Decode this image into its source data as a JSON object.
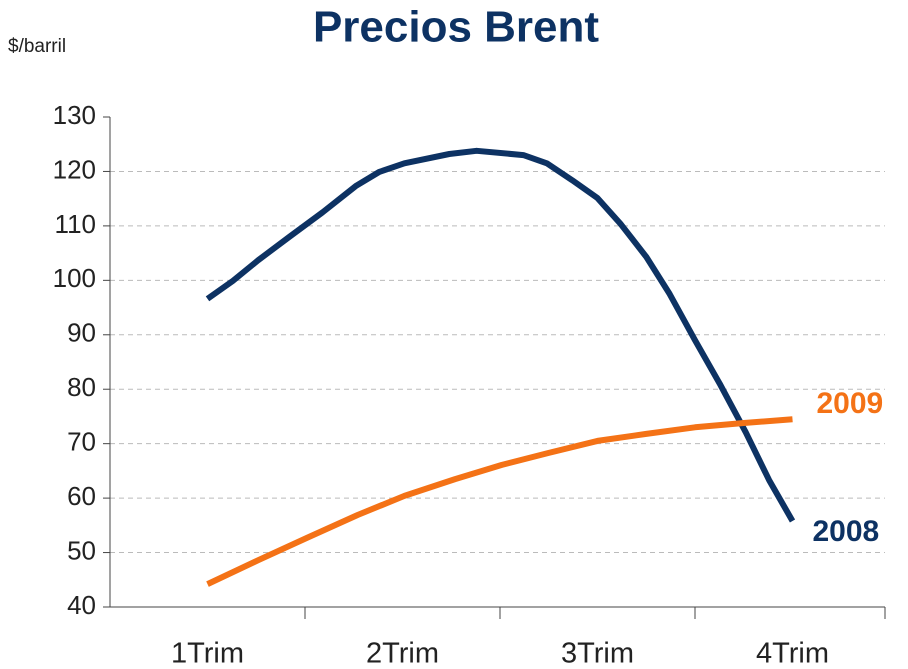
{
  "chart_data": {
    "type": "line",
    "title": "Precios Brent",
    "y_label": "$/barril",
    "xlim": [
      0.5,
      4.5
    ],
    "xticks": [
      {
        "value": 1,
        "label": "1Trim"
      },
      {
        "value": 2,
        "label": "2Trim"
      },
      {
        "value": 3,
        "label": "3Trim"
      },
      {
        "value": 4,
        "label": "4Trim"
      }
    ],
    "ylim": [
      40,
      130
    ],
    "yticks": [
      40,
      50,
      60,
      70,
      80,
      90,
      100,
      110,
      120,
      130
    ],
    "grid": true,
    "series": [
      {
        "name": "2008",
        "color": "#0d3263",
        "x": [
          1.0,
          1.13,
          1.26,
          1.42,
          1.59,
          1.76,
          1.88,
          2.01,
          2.24,
          2.38,
          2.62,
          2.74,
          2.87,
          3.0,
          3.12,
          3.25,
          3.37,
          3.5,
          3.63,
          3.76,
          3.88,
          4.0
        ],
        "values": [
          96.6,
          99.9,
          103.7,
          108,
          112.5,
          117.3,
          119.9,
          121.5,
          123.2,
          123.8,
          123,
          121.5,
          118.4,
          115.1,
          110.3,
          104.3,
          97.5,
          89,
          80.8,
          72.1,
          63.3,
          55.8
        ]
      },
      {
        "name": "2009",
        "color": "#f47216",
        "x": [
          1.0,
          1.26,
          1.51,
          1.77,
          2.01,
          2.27,
          2.51,
          2.75,
          3.0,
          3.25,
          3.5,
          3.75,
          4.0
        ],
        "values": [
          44.2,
          48.6,
          52.7,
          56.9,
          60.4,
          63.5,
          66.1,
          68.3,
          70.5,
          71.8,
          73.0,
          73.8,
          74.5
        ]
      }
    ]
  }
}
